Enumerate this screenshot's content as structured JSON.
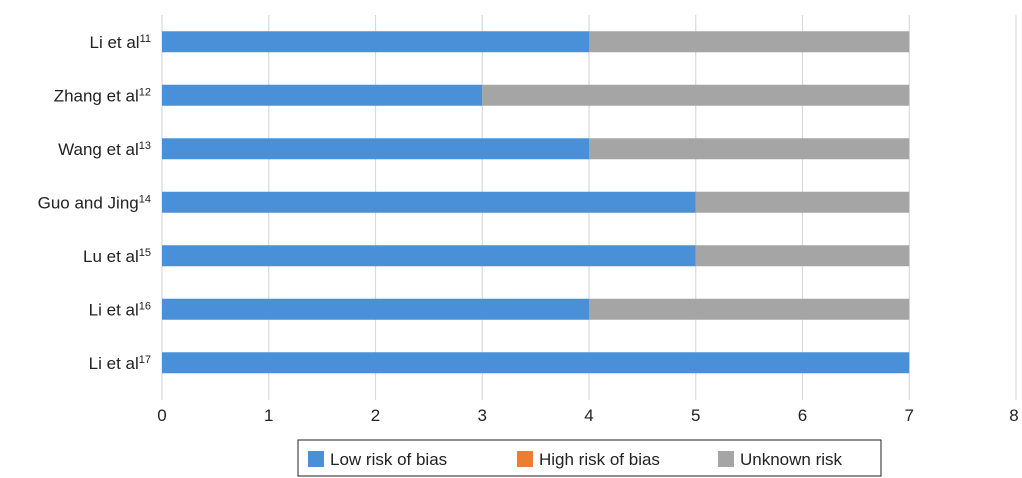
{
  "chart_data": {
    "type": "bar",
    "orientation": "horizontal",
    "stacked": true,
    "categories": [
      {
        "name": "Li et al",
        "ref": "11"
      },
      {
        "name": "Zhang et al",
        "ref": "12"
      },
      {
        "name": "Wang et al",
        "ref": "13"
      },
      {
        "name": "Guo and Jing",
        "ref": "14"
      },
      {
        "name": "Lu et al",
        "ref": "15"
      },
      {
        "name": "Li et al",
        "ref": "16"
      },
      {
        "name": "Li et al",
        "ref": "17"
      }
    ],
    "series": [
      {
        "name": "Low risk of bias",
        "color": "#4a90d9",
        "values": [
          4,
          3,
          4,
          5,
          5,
          4,
          7
        ]
      },
      {
        "name": "High risk of bias",
        "color": "#ed7d31",
        "values": [
          0,
          0,
          0,
          0,
          0,
          0,
          0
        ]
      },
      {
        "name": "Unknown risk",
        "color": "#a5a5a5",
        "values": [
          3,
          4,
          3,
          2,
          2,
          3,
          0
        ]
      }
    ],
    "xlim": [
      0,
      8
    ],
    "xticks": [
      "0",
      "1",
      "2",
      "3",
      "4",
      "5",
      "6",
      "7",
      "8"
    ],
    "grid": true,
    "legend_position": "bottom"
  }
}
